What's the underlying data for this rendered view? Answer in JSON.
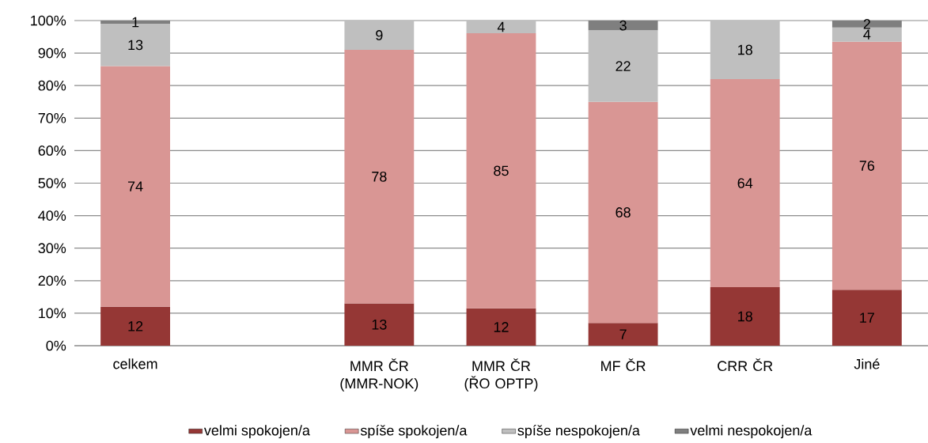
{
  "chart_data": {
    "type": "bar",
    "stacked": true,
    "categories": [
      "celkem",
      null,
      "MMR ČR (MMR-NOK)",
      "MMR ČR (ŘO OPTP)",
      "MF ČR",
      "CRR ČR",
      "Jiné"
    ],
    "series": [
      {
        "name": "velmi spokojen/a",
        "color": "#953735",
        "values": [
          12,
          null,
          13,
          11.5,
          7,
          18,
          17.2
        ],
        "value_labels": [
          "12",
          null,
          "13",
          "12",
          "7",
          "18",
          "17"
        ]
      },
      {
        "name": "spíše spokojen/a",
        "color": "#d99694",
        "values": [
          74,
          null,
          78,
          84.6,
          68,
          64,
          76.3
        ],
        "value_labels": [
          "74",
          null,
          "78",
          "85",
          "68",
          "64",
          "76"
        ]
      },
      {
        "name": "spíše nespokojen/a",
        "color": "#bfbfbf",
        "values": [
          13,
          null,
          9,
          3.9,
          22,
          18,
          4.4
        ],
        "value_labels": [
          "13",
          null,
          "9",
          "4",
          "22",
          "18",
          "4"
        ]
      },
      {
        "name": "velmi nespokojen/a",
        "color": "#7f7f7f",
        "values": [
          1,
          null,
          null,
          null,
          3,
          null,
          2.1
        ],
        "value_labels": [
          "1",
          null,
          null,
          null,
          "3",
          null,
          "2"
        ]
      }
    ],
    "ylim": [
      0,
      100
    ],
    "yticks": [
      {
        "value": 0,
        "label": "0%"
      },
      {
        "value": 10,
        "label": "10%"
      },
      {
        "value": 20,
        "label": "20%"
      },
      {
        "value": 30,
        "label": "30%"
      },
      {
        "value": 40,
        "label": "40%"
      },
      {
        "value": 50,
        "label": "50%"
      },
      {
        "value": 60,
        "label": "60%"
      },
      {
        "value": 70,
        "label": "70%"
      },
      {
        "value": 80,
        "label": "80%"
      },
      {
        "value": 90,
        "label": "90%"
      },
      {
        "value": 100,
        "label": "100%"
      }
    ],
    "grid": "y",
    "legend": "bottom"
  }
}
